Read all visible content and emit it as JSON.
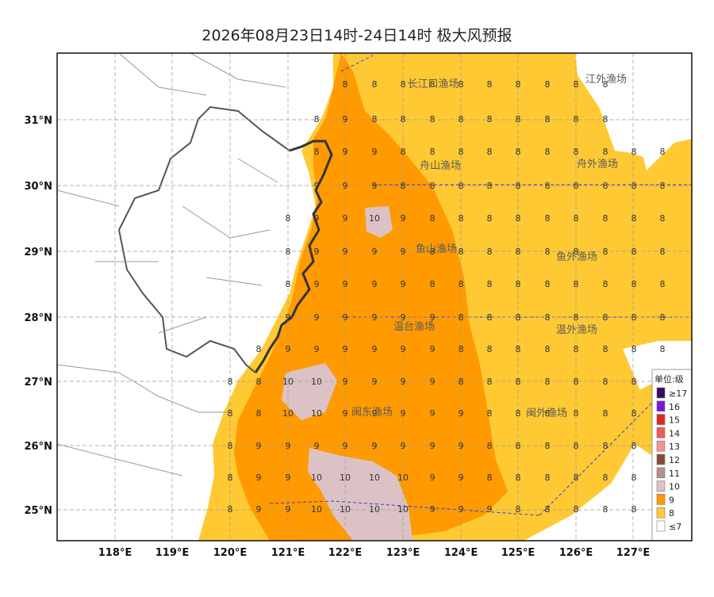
{
  "title": "2026年08月23日14时-24日14时 极大风预报",
  "x_axis_labels": [
    "118°E",
    "119°E",
    "120°E",
    "121°E",
    "122°E",
    "123°E",
    "124°E",
    "125°E",
    "126°E",
    "127°E"
  ],
  "y_axis_labels": [
    "31°N",
    "30°N",
    "29°N",
    "28°N",
    "27°N",
    "26°N",
    "25°N"
  ],
  "fishing_zones": [
    "长江口渔场",
    "江外渔场",
    "舟山渔场",
    "舟外渔场",
    "鱼山渔场",
    "鱼外渔场",
    "温台渔场",
    "温外渔场",
    "闽东渔场",
    "闽外渔场"
  ],
  "legend": {
    "title": "单位:级",
    "items": [
      {
        "label": "≥17",
        "color": "#3a0a5e"
      },
      {
        "label": "16",
        "color": "#7a18d8"
      },
      {
        "label": "15",
        "color": "#e8241f"
      },
      {
        "label": "14",
        "color": "#f25a5a"
      },
      {
        "label": "13",
        "color": "#f59494"
      },
      {
        "label": "12",
        "color": "#8b4a3c"
      },
      {
        "label": "11",
        "color": "#b6908a"
      },
      {
        "label": "10",
        "color": "#dcc2c4"
      },
      {
        "label": "9",
        "color": "#ff9a00"
      },
      {
        "label": "8",
        "color": "#ffc933"
      },
      {
        "label": "≤7",
        "color": "#ffffff"
      }
    ]
  },
  "colors": {
    "level8": "#ffc933",
    "level9": "#ff9a00",
    "level10": "#dcc2c4"
  }
}
